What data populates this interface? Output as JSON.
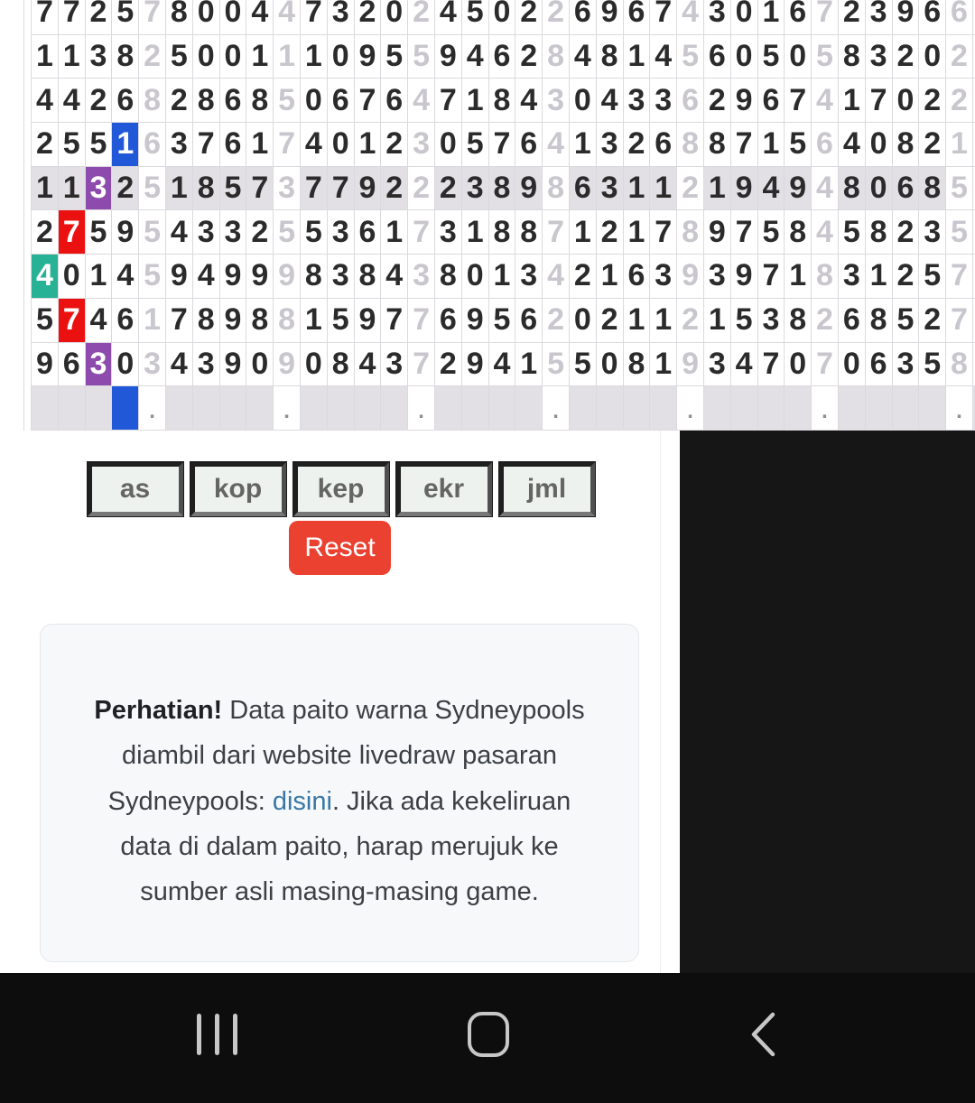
{
  "colors": {
    "page-bg": "#ffffff",
    "digit": "#2b2b2b",
    "sum-digit": "#c9c6ce",
    "cell-border": "#dcd9de",
    "row-highlight": "#e3e0e5",
    "blue": "#2158d8",
    "purple": "#8c4bad",
    "red": "#ec1111",
    "teal": "#28b295",
    "panel-black": "#161616",
    "navbar-bg": "#0d0d0d",
    "navbar-icon": "#c7c7c7",
    "reset-bg": "#ea4130",
    "button-bg": "#edf2ee",
    "button-text": "#656565",
    "link": "#3878a8",
    "card-bg": "#f7f8fa",
    "card-border": "#e4e7ec"
  },
  "grid": {
    "group_size": 5,
    "rows": [
      "77257800447320245022696743016723966",
      "11382500111095594628481456050583202",
      "44268286850676471843043362967417022",
      "25516376174012305764132688715640821",
      "11325185737792223898631121949480685",
      "27595433255361731887121789758458235",
      "40145949998384380134216393971831257",
      "57461789881597769562021121538268527",
      "96303439090843729415508193470706358"
    ],
    "highlight_row": 4,
    "special_cells": [
      {
        "row": 3,
        "col": 3,
        "color": "blue"
      },
      {
        "row": 4,
        "col": 2,
        "color": "purple"
      },
      {
        "row": 5,
        "col": 1,
        "color": "red"
      },
      {
        "row": 6,
        "col": 0,
        "color": "teal"
      },
      {
        "row": 7,
        "col": 1,
        "color": "red"
      },
      {
        "row": 8,
        "col": 2,
        "color": "purple"
      }
    ],
    "footer": {
      "blue_col": 3,
      "dot_char": "."
    }
  },
  "controls": {
    "filters": [
      "as",
      "kop",
      "kep",
      "ekr",
      "jml"
    ],
    "reset_label": "Reset"
  },
  "notice": {
    "bold": "Perhatian!",
    "text1": " Data paito warna Sydneypools diambil dari website livedraw pasaran Sydneypools: ",
    "link": "disini",
    "text2": ". Jika ada kekeliruan data di dalam paito, harap merujuk ke sumber asli masing-masing game."
  },
  "navbar": {
    "icons": [
      "recents",
      "home",
      "back"
    ]
  }
}
